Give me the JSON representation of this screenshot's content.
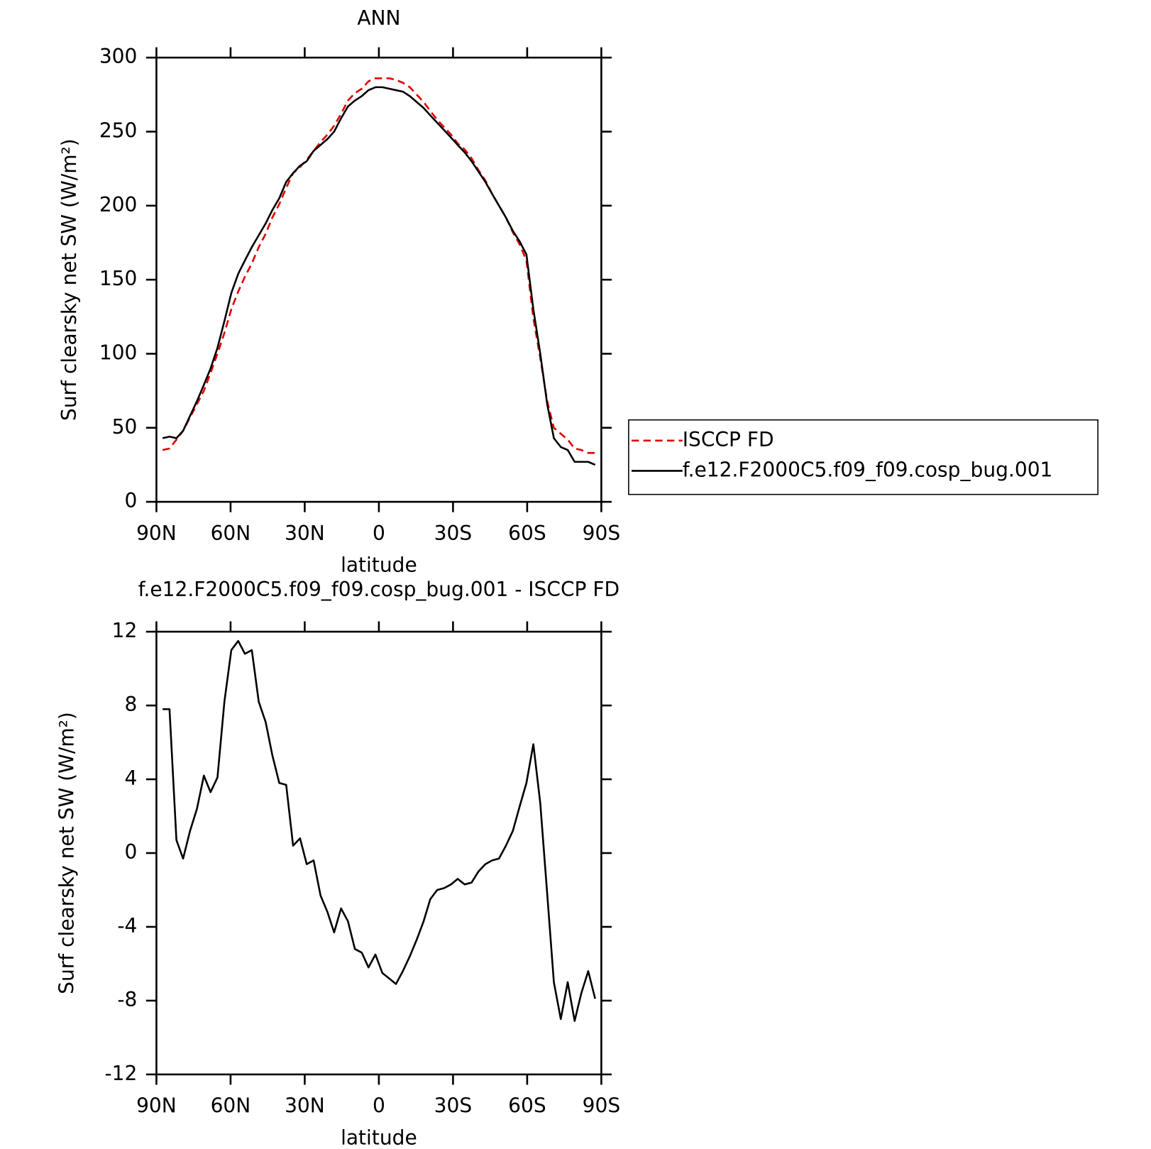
{
  "chart_data": [
    {
      "type": "line",
      "title": "ANN",
      "xlabel": "latitude",
      "ylabel": "Surf clearsky net SW (W/m²)",
      "x": [
        87.5,
        84.7,
        81.9,
        79.2,
        76.4,
        73.6,
        70.8,
        68.1,
        65.3,
        62.5,
        59.7,
        56.9,
        54.2,
        51.4,
        48.6,
        45.8,
        43.1,
        40.3,
        37.5,
        34.7,
        31.9,
        29.2,
        26.4,
        23.6,
        20.8,
        18.1,
        15.3,
        12.5,
        9.7,
        6.9,
        4.2,
        1.4,
        -1.4,
        -4.2,
        -6.9,
        -9.7,
        -12.5,
        -15.3,
        -18.1,
        -20.8,
        -23.6,
        -26.4,
        -29.2,
        -31.9,
        -34.7,
        -37.5,
        -40.3,
        -43.1,
        -45.8,
        -48.6,
        -51.4,
        -54.2,
        -56.9,
        -59.7,
        -62.5,
        -65.3,
        -68.1,
        -70.8,
        -73.6,
        -76.4,
        -79.2,
        -81.9,
        -84.7,
        -87.5
      ],
      "xlim": [
        90,
        -90
      ],
      "xticks": [
        {
          "value": 90,
          "label": "90N"
        },
        {
          "value": 60,
          "label": "60N"
        },
        {
          "value": 30,
          "label": "30N"
        },
        0,
        {
          "value": -30,
          "label": "30S"
        },
        {
          "value": -60,
          "label": "60S"
        },
        {
          "value": -90,
          "label": "90S"
        }
      ],
      "ylim": [
        0,
        300
      ],
      "yticks": [
        0,
        50,
        100,
        150,
        200,
        250,
        300
      ],
      "legend": "right",
      "series": [
        {
          "name": "ISCCP FD",
          "color": "#e00000",
          "linestyle": "dashed",
          "values": [
            35,
            36,
            42,
            48,
            57,
            66,
            75,
            87,
            100,
            114,
            130,
            142,
            152,
            161,
            172,
            181,
            192,
            201,
            212,
            222,
            226,
            231,
            237,
            243,
            248,
            254,
            262,
            271,
            276,
            279,
            284,
            286,
            286,
            286,
            285,
            283,
            280,
            275,
            270,
            264,
            258,
            253,
            248,
            242,
            238,
            232,
            224,
            217,
            208,
            200,
            192,
            182,
            174,
            163,
            124,
            97,
            68,
            50,
            46,
            42,
            36,
            35,
            33,
            33
          ]
        },
        {
          "name": "f.e12.F2000C5.f09_f09.cosp_bug.001",
          "color": "#000000",
          "linestyle": "solid",
          "values": [
            43,
            44,
            43,
            48,
            58,
            68,
            79,
            90,
            104,
            122,
            141,
            154,
            163,
            172,
            180,
            188,
            197,
            205,
            216,
            222,
            227,
            230,
            237,
            241,
            245,
            250,
            259,
            267,
            271,
            274,
            278,
            280,
            280,
            279,
            278,
            277,
            274,
            270,
            266,
            261,
            256,
            251,
            246,
            241,
            236,
            230,
            223,
            216,
            208,
            200,
            192,
            183,
            176,
            167,
            130,
            100,
            66,
            43,
            37,
            35,
            27,
            27,
            27,
            25
          ]
        }
      ]
    },
    {
      "type": "line",
      "title": "f.e12.F2000C5.f09_f09.cosp_bug.001 - ISCCP FD",
      "xlabel": "latitude",
      "ylabel": "Surf clearsky net SW (W/m²)",
      "x": [
        87.5,
        84.7,
        81.9,
        79.2,
        76.4,
        73.6,
        70.8,
        68.1,
        65.3,
        62.5,
        59.7,
        56.9,
        54.2,
        51.4,
        48.6,
        45.8,
        43.1,
        40.3,
        37.5,
        34.7,
        31.9,
        29.2,
        26.4,
        23.6,
        20.8,
        18.1,
        15.3,
        12.5,
        9.7,
        6.9,
        4.2,
        1.4,
        -1.4,
        -4.2,
        -6.9,
        -9.7,
        -12.5,
        -15.3,
        -18.1,
        -20.8,
        -23.6,
        -26.4,
        -29.2,
        -31.9,
        -34.7,
        -37.5,
        -40.3,
        -43.1,
        -45.8,
        -48.6,
        -51.4,
        -54.2,
        -56.9,
        -59.7,
        -62.5,
        -65.3,
        -68.1,
        -70.8,
        -73.6,
        -76.4,
        -79.2,
        -81.9,
        -84.7,
        -87.5
      ],
      "xlim": [
        90,
        -90
      ],
      "xticks": [
        {
          "value": 90,
          "label": "90N"
        },
        {
          "value": 60,
          "label": "60N"
        },
        {
          "value": 30,
          "label": "30N"
        },
        0,
        {
          "value": -30,
          "label": "30S"
        },
        {
          "value": -60,
          "label": "60S"
        },
        {
          "value": -90,
          "label": "90S"
        }
      ],
      "ylim": [
        -12,
        12
      ],
      "yticks": [
        -12,
        -8,
        -4,
        0,
        4,
        8,
        12
      ],
      "color": "#000000",
      "values": [
        7.8,
        7.8,
        0.7,
        -0.3,
        1.2,
        2.4,
        4.2,
        3.3,
        4.1,
        8.2,
        11.0,
        11.5,
        10.8,
        11.0,
        8.2,
        7.1,
        5.3,
        3.8,
        3.7,
        0.4,
        0.8,
        -0.6,
        -0.4,
        -2.3,
        -3.2,
        -4.3,
        -3.0,
        -3.7,
        -5.2,
        -5.4,
        -6.2,
        -5.5,
        -6.5,
        -6.8,
        -7.1,
        -6.4,
        -5.6,
        -4.7,
        -3.7,
        -2.5,
        -2.0,
        -1.9,
        -1.7,
        -1.4,
        -1.7,
        -1.6,
        -1.0,
        -0.6,
        -0.4,
        -0.3,
        0.4,
        1.2,
        2.5,
        3.8,
        5.9,
        2.7,
        -2.2,
        -7.0,
        -9.0,
        -7.0,
        -9.1,
        -7.6,
        -6.4,
        -7.9
      ]
    }
  ]
}
